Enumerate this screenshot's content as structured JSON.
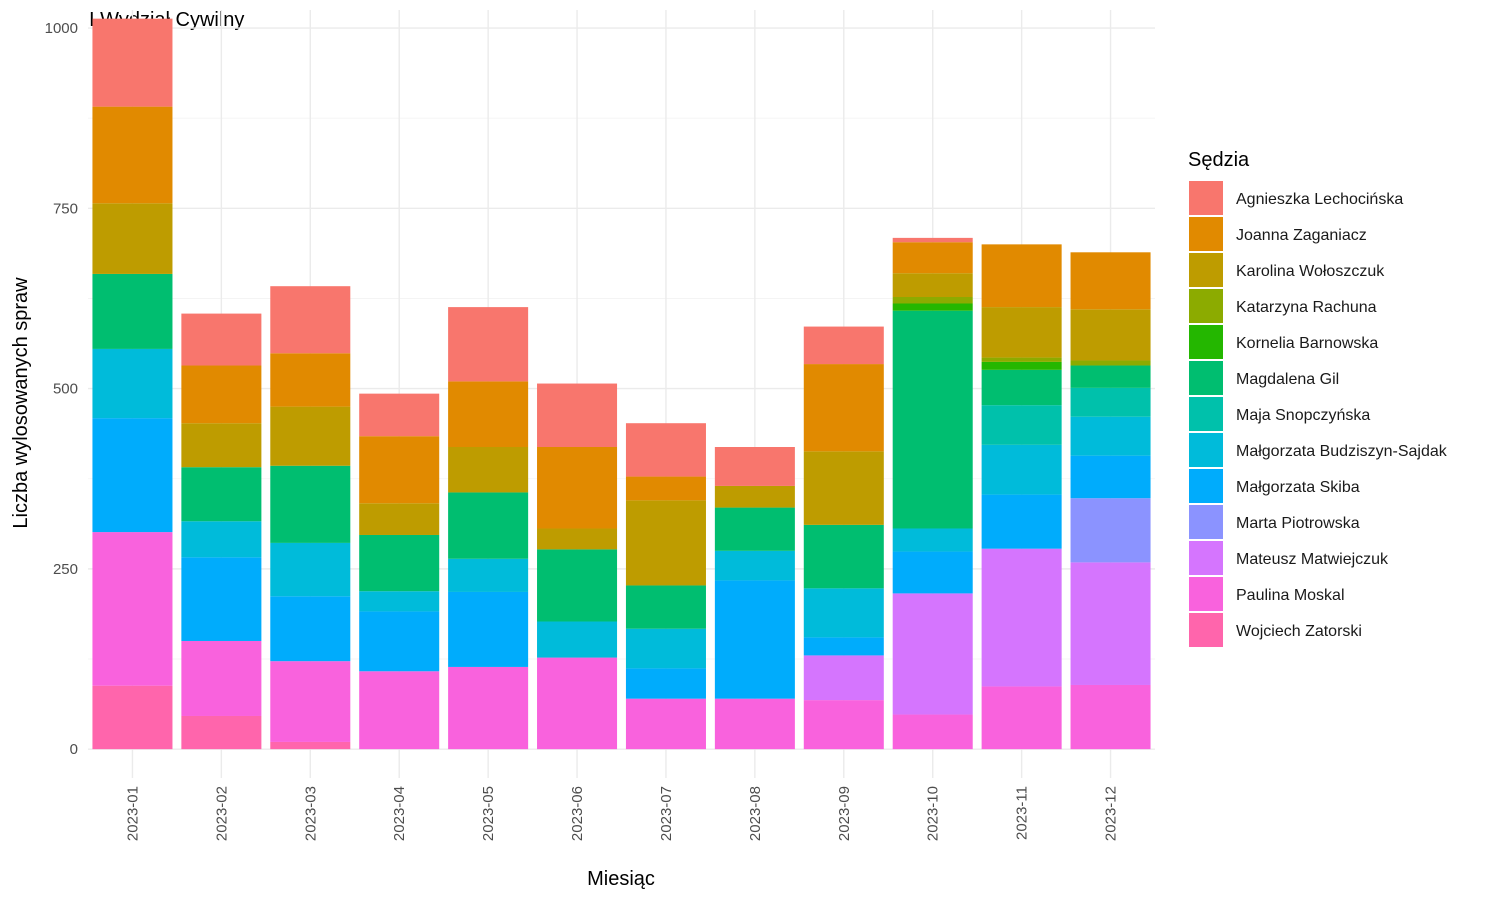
{
  "chart_data": {
    "type": "bar",
    "stacked": true,
    "title": "I Wydział Cywilny",
    "xlabel": "Miesiąc",
    "ylabel": "Liczba wylosowanych spraw",
    "ylim": [
      -40,
      1025
    ],
    "yticks": [
      0,
      250,
      500,
      750,
      1000
    ],
    "yticks_labels": [
      "0",
      "250",
      "500",
      "750",
      "1000"
    ],
    "grid": true,
    "legend_title": "Sędzia",
    "legend_position": "right",
    "categories": [
      "2023-01",
      "2023-02",
      "2023-03",
      "2023-04",
      "2023-05",
      "2023-06",
      "2023-07",
      "2023-08",
      "2023-09",
      "2023-10",
      "2023-11",
      "2023-12"
    ],
    "series": [
      {
        "name": "Agnieszka Lechocińska",
        "color": "#F8766D",
        "values": [
          122,
          72,
          93,
          59,
          103,
          88,
          74,
          54,
          52,
          6,
          0,
          0
        ]
      },
      {
        "name": "Joanna Zaganiacz",
        "color": "#E18A00",
        "values": [
          134,
          80,
          74,
          93,
          91,
          113,
          33,
          0,
          121,
          43,
          87,
          79
        ]
      },
      {
        "name": "Karolina Wołoszczuk",
        "color": "#BE9C00",
        "values": [
          98,
          61,
          82,
          44,
          63,
          29,
          118,
          30,
          102,
          33,
          70,
          71
        ]
      },
      {
        "name": "Katarzyna Rachuna",
        "color": "#8CAB00",
        "values": [
          0,
          0,
          0,
          0,
          0,
          0,
          0,
          0,
          0,
          9,
          6,
          7
        ]
      },
      {
        "name": "Kornelia Barnowska",
        "color": "#24B700",
        "values": [
          0,
          0,
          0,
          0,
          0,
          0,
          0,
          0,
          0,
          10,
          11,
          0
        ]
      },
      {
        "name": "Magdalena Gil",
        "color": "#00BE70",
        "values": [
          104,
          75,
          107,
          78,
          92,
          100,
          60,
          60,
          88,
          302,
          49,
          31
        ]
      },
      {
        "name": "Maja Snopczyńska",
        "color": "#00C1AB",
        "values": [
          0,
          0,
          0,
          0,
          0,
          0,
          0,
          0,
          0,
          0,
          55,
          40
        ]
      },
      {
        "name": "Małgorzata Budziszyn-Sajdak",
        "color": "#00BBDA",
        "values": [
          96,
          50,
          74,
          28,
          46,
          50,
          55,
          41,
          68,
          32,
          69,
          54
        ]
      },
      {
        "name": "Małgorzata Skiba",
        "color": "#00ACFC",
        "values": [
          158,
          116,
          90,
          83,
          104,
          0,
          42,
          164,
          25,
          58,
          75,
          59
        ]
      },
      {
        "name": "Marta Piotrowska",
        "color": "#8B93FF",
        "values": [
          0,
          0,
          0,
          0,
          0,
          0,
          0,
          0,
          0,
          0,
          0,
          89
        ]
      },
      {
        "name": "Mateusz Matwiejczuk",
        "color": "#D575FE",
        "values": [
          0,
          0,
          0,
          0,
          0,
          0,
          0,
          0,
          62,
          168,
          191,
          170
        ]
      },
      {
        "name": "Paulina Moskal",
        "color": "#F962DD",
        "values": [
          213,
          104,
          112,
          108,
          114,
          127,
          70,
          70,
          68,
          48,
          87,
          89
        ]
      },
      {
        "name": "Wojciech Zatorski",
        "color": "#FF65AC",
        "values": [
          88,
          46,
          10,
          0,
          0,
          0,
          0,
          0,
          0,
          0,
          0,
          0
        ]
      }
    ]
  }
}
